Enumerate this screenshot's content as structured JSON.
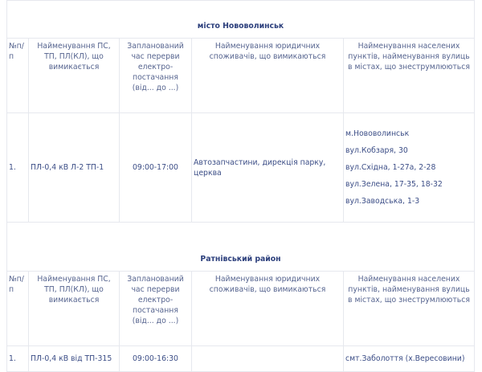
{
  "headers": [
    "№п/п",
    "Найменування ПС, ТП, ПЛ(КЛ), що вимикається",
    "Запланований час перерви електро-постачання (від... до ...)",
    "Найменування юридичних споживачів, що вимикаються",
    "Найменування населених пунктів, найменування вулиць в містах, що знеструмлюються"
  ],
  "sections": [
    {
      "title": "місто Нововолинськ",
      "rows": [
        {
          "num": "1.",
          "line": "ПЛ-0,4 кВ Л-2 ТП-1",
          "time": "09:00-17:00",
          "consumers": "Автозапчастини, дирекція парку, церква",
          "places": [
            "м.Нововолинськ",
            "вул.Кобзаря, 30",
            "вул.Східна, 1-27а, 2-28",
            "вул.Зелена, 17-35, 18-32",
            "вул.Заводська, 1-3"
          ]
        }
      ]
    },
    {
      "title": "Ратнівський район",
      "rows": [
        {
          "num": "1.",
          "line": "ПЛ-0,4 кВ від ТП-315",
          "time": "09:00-16:30",
          "consumers": "",
          "places": [
            "смт.Заболоття (х.Вересовини)"
          ]
        }
      ]
    }
  ]
}
